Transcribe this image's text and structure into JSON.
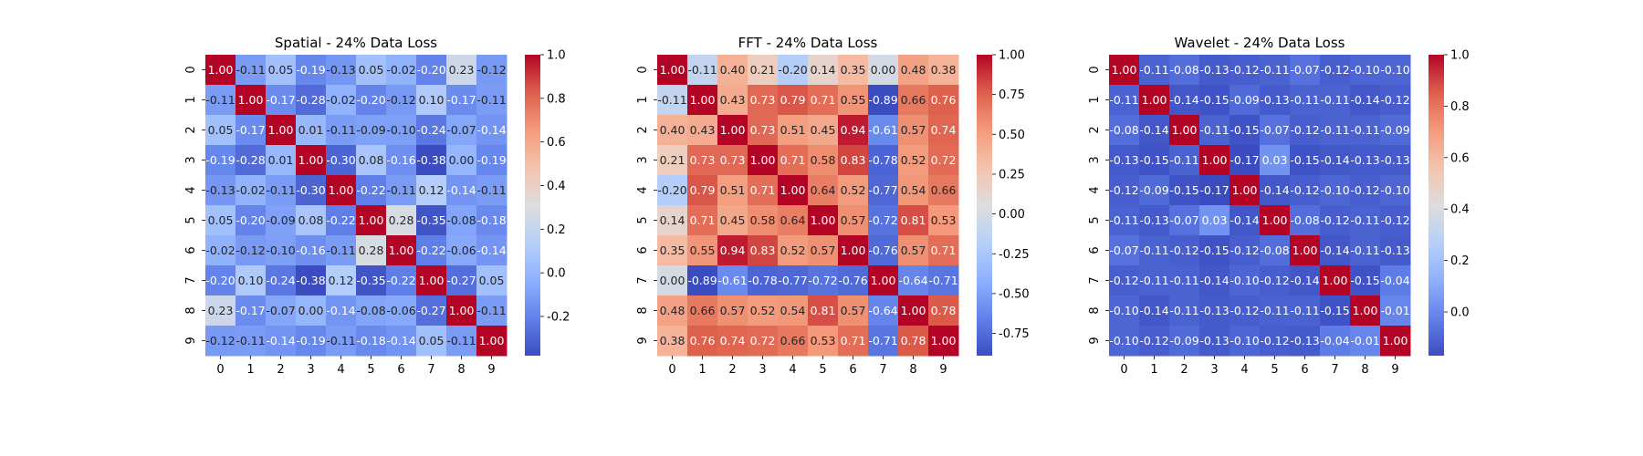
{
  "chart_data": [
    {
      "type": "heatmap",
      "title": "Spatial - 24% Data Loss",
      "xlabel": "",
      "ylabel": "",
      "x_categories": [
        "0",
        "1",
        "2",
        "3",
        "4",
        "5",
        "6",
        "7",
        "8",
        "9"
      ],
      "y_categories": [
        "0",
        "1",
        "2",
        "3",
        "4",
        "5",
        "6",
        "7",
        "8",
        "9"
      ],
      "colormap": "coolwarm",
      "vmin": -0.38,
      "vmax": 1.0,
      "colorbar_ticks": [
        -0.2,
        0.0,
        0.2,
        0.4,
        0.6,
        0.8,
        1.0
      ],
      "values": [
        [
          1.0,
          -0.11,
          0.05,
          -0.19,
          -0.13,
          0.05,
          -0.02,
          -0.2,
          0.23,
          -0.12
        ],
        [
          -0.11,
          1.0,
          -0.17,
          -0.28,
          -0.02,
          -0.2,
          -0.12,
          0.1,
          -0.17,
          -0.11
        ],
        [
          0.05,
          -0.17,
          1.0,
          0.01,
          -0.11,
          -0.09,
          -0.1,
          -0.24,
          -0.07,
          -0.14
        ],
        [
          -0.19,
          -0.28,
          0.01,
          1.0,
          -0.3,
          0.08,
          -0.16,
          -0.38,
          -0.0,
          -0.19
        ],
        [
          -0.13,
          -0.02,
          -0.11,
          -0.3,
          1.0,
          -0.22,
          -0.11,
          0.12,
          -0.14,
          -0.11
        ],
        [
          0.05,
          -0.2,
          -0.09,
          0.08,
          -0.22,
          1.0,
          0.28,
          -0.35,
          -0.08,
          -0.18
        ],
        [
          -0.02,
          -0.12,
          -0.1,
          -0.16,
          -0.11,
          0.28,
          1.0,
          -0.22,
          -0.06,
          -0.14
        ],
        [
          -0.2,
          0.1,
          -0.24,
          -0.38,
          0.12,
          -0.35,
          -0.22,
          1.0,
          -0.27,
          0.05
        ],
        [
          0.23,
          -0.17,
          -0.07,
          -0.0,
          -0.14,
          -0.08,
          -0.06,
          -0.27,
          1.0,
          -0.11
        ],
        [
          -0.12,
          -0.11,
          -0.14,
          -0.19,
          -0.11,
          -0.18,
          -0.14,
          0.05,
          -0.11,
          1.0
        ]
      ]
    },
    {
      "type": "heatmap",
      "title": "FFT - 24% Data Loss",
      "xlabel": "",
      "ylabel": "",
      "x_categories": [
        "0",
        "1",
        "2",
        "3",
        "4",
        "5",
        "6",
        "7",
        "8",
        "9"
      ],
      "y_categories": [
        "0",
        "1",
        "2",
        "3",
        "4",
        "5",
        "6",
        "7",
        "8",
        "9"
      ],
      "colormap": "coolwarm",
      "vmin": -0.89,
      "vmax": 1.0,
      "colorbar_ticks": [
        -0.75,
        -0.5,
        -0.25,
        0.0,
        0.25,
        0.5,
        0.75,
        1.0
      ],
      "values": [
        [
          1.0,
          -0.11,
          0.4,
          0.21,
          -0.2,
          0.14,
          0.35,
          0.0,
          0.48,
          0.38
        ],
        [
          -0.11,
          1.0,
          0.43,
          0.73,
          0.79,
          0.71,
          0.55,
          -0.89,
          0.66,
          0.76
        ],
        [
          0.4,
          0.43,
          1.0,
          0.73,
          0.51,
          0.45,
          0.94,
          -0.61,
          0.57,
          0.74
        ],
        [
          0.21,
          0.73,
          0.73,
          1.0,
          0.71,
          0.58,
          0.83,
          -0.78,
          0.52,
          0.72
        ],
        [
          -0.2,
          0.79,
          0.51,
          0.71,
          1.0,
          0.64,
          0.52,
          -0.77,
          0.54,
          0.66
        ],
        [
          0.14,
          0.71,
          0.45,
          0.58,
          0.64,
          1.0,
          0.57,
          -0.72,
          0.81,
          0.53
        ],
        [
          0.35,
          0.55,
          0.94,
          0.83,
          0.52,
          0.57,
          1.0,
          -0.76,
          0.57,
          0.71
        ],
        [
          -0.0,
          -0.89,
          -0.61,
          -0.78,
          -0.77,
          -0.72,
          -0.76,
          1.0,
          -0.64,
          -0.71
        ],
        [
          0.48,
          0.66,
          0.57,
          0.52,
          0.54,
          0.81,
          0.57,
          -0.64,
          1.0,
          0.78
        ],
        [
          0.38,
          0.76,
          0.74,
          0.72,
          0.66,
          0.53,
          0.71,
          -0.71,
          0.78,
          1.0
        ]
      ]
    },
    {
      "type": "heatmap",
      "title": "Wavelet - 24% Data Loss",
      "xlabel": "",
      "ylabel": "",
      "x_categories": [
        "0",
        "1",
        "2",
        "3",
        "4",
        "5",
        "6",
        "7",
        "8",
        "9"
      ],
      "y_categories": [
        "0",
        "1",
        "2",
        "3",
        "4",
        "5",
        "6",
        "7",
        "8",
        "9"
      ],
      "colormap": "coolwarm",
      "vmin": -0.17,
      "vmax": 1.0,
      "colorbar_ticks": [
        0.0,
        0.2,
        0.4,
        0.6,
        0.8,
        1.0
      ],
      "values": [
        [
          1.0,
          -0.11,
          -0.08,
          -0.13,
          -0.12,
          -0.11,
          -0.07,
          -0.12,
          -0.1,
          -0.1
        ],
        [
          -0.11,
          1.0,
          -0.14,
          -0.15,
          -0.09,
          -0.13,
          -0.11,
          -0.11,
          -0.14,
          -0.12
        ],
        [
          -0.08,
          -0.14,
          1.0,
          -0.11,
          -0.15,
          -0.07,
          -0.12,
          -0.11,
          -0.11,
          -0.09
        ],
        [
          -0.13,
          -0.15,
          -0.11,
          1.0,
          -0.17,
          0.03,
          -0.15,
          -0.14,
          -0.13,
          -0.13
        ],
        [
          -0.12,
          -0.09,
          -0.15,
          -0.17,
          1.0,
          -0.14,
          -0.12,
          -0.1,
          -0.12,
          -0.1
        ],
        [
          -0.11,
          -0.13,
          -0.07,
          0.03,
          -0.14,
          1.0,
          -0.08,
          -0.12,
          -0.11,
          -0.12
        ],
        [
          -0.07,
          -0.11,
          -0.12,
          -0.15,
          -0.12,
          -0.08,
          1.0,
          -0.14,
          -0.11,
          -0.13
        ],
        [
          -0.12,
          -0.11,
          -0.11,
          -0.14,
          -0.1,
          -0.12,
          -0.14,
          1.0,
          -0.15,
          -0.04
        ],
        [
          -0.1,
          -0.14,
          -0.11,
          -0.13,
          -0.12,
          -0.11,
          -0.11,
          -0.15,
          1.0,
          -0.01
        ],
        [
          -0.1,
          -0.12,
          -0.09,
          -0.13,
          -0.1,
          -0.12,
          -0.13,
          -0.04,
          -0.01,
          1.0
        ]
      ]
    }
  ]
}
